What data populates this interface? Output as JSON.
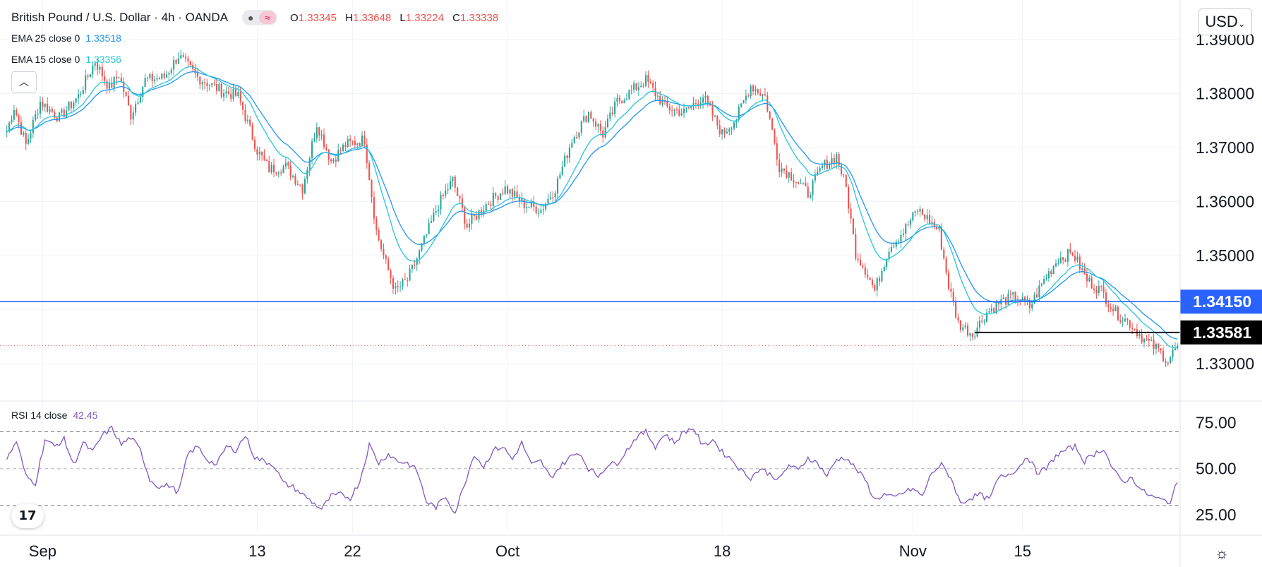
{
  "header": {
    "title": "British Pound / U.S. Dollar · 4h · OANDA",
    "ohlc": [
      {
        "key": "O",
        "value": "1.33345"
      },
      {
        "key": "H",
        "value": "1.33648"
      },
      {
        "key": "L",
        "value": "1.33224"
      },
      {
        "key": "C",
        "value": "1.33338"
      }
    ]
  },
  "indicators": {
    "ema25": {
      "label": "EMA 25 close 0",
      "value": "1.33518",
      "color": "#2196f3"
    },
    "ema15": {
      "label": "EMA 15 close 0",
      "value": "1.33356",
      "color": "#26c6da"
    },
    "rsi": {
      "label": "RSI 14 close",
      "value": "42.45",
      "color": "#7e57c2"
    }
  },
  "currency_button": "USD",
  "colors": {
    "up": "#26a69a",
    "down": "#ef5350",
    "support": "#2962ff",
    "resistance": "#000000"
  },
  "price_axis": {
    "ticks": [
      "1.39000",
      "1.38000",
      "1.37000",
      "1.36000",
      "1.35000",
      "1.33000"
    ]
  },
  "rsi_axis": {
    "ticks": [
      "75.00",
      "50.00",
      "25.00"
    ]
  },
  "time_axis": {
    "labels": [
      "Sep",
      "13",
      "22",
      "Oct",
      "18",
      "Nov",
      "15"
    ]
  },
  "chart_data": {
    "type": "candlestick",
    "title": "British Pound / U.S. Dollar",
    "interval": "4h",
    "ylim": [
      1.3235,
      1.396
    ],
    "rsi_ylim": [
      15,
      84
    ],
    "grid": true,
    "levels": [
      {
        "label": "1.34150",
        "value": 1.3415,
        "color": "#2962ff",
        "style": "solid",
        "from": "start"
      },
      {
        "label": "1.33581",
        "value": 1.33581,
        "color": "#000000",
        "style": "solid",
        "from": "Nov 11"
      }
    ],
    "current_close": 1.33338,
    "x_labels": [
      "Sep",
      "13",
      "22",
      "Oct",
      "18",
      "Nov",
      "15"
    ],
    "close_path": [
      [
        0,
        1.373
      ],
      [
        3,
        1.3775
      ],
      [
        8,
        1.3705
      ],
      [
        14,
        1.3785
      ],
      [
        22,
        1.3755
      ],
      [
        30,
        1.3795
      ],
      [
        37,
        1.386
      ],
      [
        43,
        1.381
      ],
      [
        47,
        1.3835
      ],
      [
        52,
        1.376
      ],
      [
        58,
        1.3825
      ],
      [
        66,
        1.383
      ],
      [
        72,
        1.387
      ],
      [
        80,
        1.383
      ],
      [
        90,
        1.3805
      ],
      [
        97,
        1.3795
      ],
      [
        105,
        1.3695
      ],
      [
        110,
        1.366
      ],
      [
        117,
        1.3665
      ],
      [
        124,
        1.3625
      ],
      [
        130,
        1.3745
      ],
      [
        136,
        1.3675
      ],
      [
        142,
        1.3705
      ],
      [
        150,
        1.3715
      ],
      [
        155,
        1.3545
      ],
      [
        159,
        1.3485
      ],
      [
        163,
        1.3435
      ],
      [
        168,
        1.3455
      ],
      [
        173,
        1.3505
      ],
      [
        181,
        1.3595
      ],
      [
        187,
        1.364
      ],
      [
        193,
        1.3555
      ],
      [
        201,
        1.3595
      ],
      [
        209,
        1.3625
      ],
      [
        217,
        1.3595
      ],
      [
        224,
        1.3585
      ],
      [
        230,
        1.3625
      ],
      [
        237,
        1.3715
      ],
      [
        244,
        1.3765
      ],
      [
        250,
        1.3725
      ],
      [
        256,
        1.3785
      ],
      [
        262,
        1.3805
      ],
      [
        268,
        1.3825
      ],
      [
        276,
        1.3775
      ],
      [
        284,
        1.3765
      ],
      [
        292,
        1.3795
      ],
      [
        300,
        1.3725
      ],
      [
        306,
        1.3755
      ],
      [
        312,
        1.3815
      ],
      [
        318,
        1.3795
      ],
      [
        324,
        1.3665
      ],
      [
        330,
        1.3645
      ],
      [
        336,
        1.3615
      ],
      [
        342,
        1.3665
      ],
      [
        348,
        1.3685
      ],
      [
        352,
        1.3625
      ],
      [
        356,
        1.3505
      ],
      [
        360,
        1.3475
      ],
      [
        364,
        1.3435
      ],
      [
        370,
        1.3515
      ],
      [
        376,
        1.3545
      ],
      [
        382,
        1.3585
      ],
      [
        387,
        1.3565
      ],
      [
        391,
        1.3545
      ],
      [
        395,
        1.3445
      ],
      [
        399,
        1.3375
      ],
      [
        405,
        1.3355
      ],
      [
        411,
        1.3395
      ],
      [
        417,
        1.3415
      ],
      [
        423,
        1.3425
      ],
      [
        429,
        1.3405
      ],
      [
        435,
        1.3455
      ],
      [
        441,
        1.3495
      ],
      [
        447,
        1.3505
      ],
      [
        453,
        1.3455
      ],
      [
        459,
        1.3435
      ],
      [
        465,
        1.3395
      ],
      [
        471,
        1.3375
      ],
      [
        477,
        1.3345
      ],
      [
        483,
        1.3325
      ],
      [
        487,
        1.3305
      ],
      [
        491,
        1.3334
      ]
    ],
    "rsi_path": [
      [
        0,
        55
      ],
      [
        4,
        65
      ],
      [
        8,
        46
      ],
      [
        12,
        42
      ],
      [
        16,
        66
      ],
      [
        20,
        62
      ],
      [
        24,
        66
      ],
      [
        28,
        52
      ],
      [
        32,
        64
      ],
      [
        36,
        59
      ],
      [
        40,
        68
      ],
      [
        44,
        72
      ],
      [
        48,
        63
      ],
      [
        52,
        67
      ],
      [
        56,
        60
      ],
      [
        60,
        44
      ],
      [
        64,
        40
      ],
      [
        68,
        41
      ],
      [
        72,
        37
      ],
      [
        76,
        58
      ],
      [
        80,
        62
      ],
      [
        84,
        55
      ],
      [
        88,
        52
      ],
      [
        92,
        62
      ],
      [
        96,
        60
      ],
      [
        100,
        68
      ],
      [
        104,
        56
      ],
      [
        108,
        54
      ],
      [
        112,
        52
      ],
      [
        116,
        42
      ],
      [
        120,
        40
      ],
      [
        124,
        36
      ],
      [
        128,
        32
      ],
      [
        132,
        28
      ],
      [
        136,
        35
      ],
      [
        140,
        36
      ],
      [
        144,
        34
      ],
      [
        148,
        43
      ],
      [
        152,
        63
      ],
      [
        156,
        53
      ],
      [
        160,
        58
      ],
      [
        164,
        54
      ],
      [
        168,
        53
      ],
      [
        172,
        49
      ],
      [
        176,
        32
      ],
      [
        180,
        29
      ],
      [
        184,
        35
      ],
      [
        188,
        26
      ],
      [
        192,
        42
      ],
      [
        196,
        58
      ],
      [
        200,
        51
      ],
      [
        204,
        60
      ],
      [
        208,
        62
      ],
      [
        212,
        55
      ],
      [
        216,
        64
      ],
      [
        220,
        52
      ],
      [
        224,
        54
      ],
      [
        228,
        45
      ],
      [
        232,
        51
      ],
      [
        236,
        56
      ],
      [
        240,
        59
      ],
      [
        244,
        50
      ],
      [
        248,
        46
      ],
      [
        252,
        52
      ],
      [
        256,
        53
      ],
      [
        260,
        60
      ],
      [
        264,
        67
      ],
      [
        268,
        70
      ],
      [
        272,
        62
      ],
      [
        276,
        69
      ],
      [
        280,
        64
      ],
      [
        284,
        70
      ],
      [
        288,
        72
      ],
      [
        292,
        62
      ],
      [
        296,
        66
      ],
      [
        300,
        59
      ],
      [
        304,
        55
      ],
      [
        308,
        49
      ],
      [
        312,
        45
      ],
      [
        316,
        50
      ],
      [
        320,
        47
      ],
      [
        324,
        44
      ],
      [
        328,
        52
      ],
      [
        332,
        49
      ],
      [
        336,
        56
      ],
      [
        340,
        53
      ],
      [
        344,
        46
      ],
      [
        348,
        55
      ],
      [
        352,
        56
      ],
      [
        356,
        50
      ],
      [
        360,
        44
      ],
      [
        364,
        33
      ],
      [
        368,
        36
      ],
      [
        372,
        34
      ],
      [
        376,
        37
      ],
      [
        380,
        39
      ],
      [
        384,
        35
      ],
      [
        388,
        48
      ],
      [
        392,
        52
      ],
      [
        396,
        45
      ],
      [
        400,
        31
      ],
      [
        404,
        34
      ],
      [
        408,
        36
      ],
      [
        412,
        33
      ],
      [
        416,
        45
      ],
      [
        420,
        47
      ],
      [
        424,
        50
      ],
      [
        428,
        57
      ],
      [
        432,
        48
      ],
      [
        436,
        50
      ],
      [
        440,
        57
      ],
      [
        444,
        60
      ],
      [
        448,
        62
      ],
      [
        452,
        54
      ],
      [
        456,
        58
      ],
      [
        460,
        61
      ],
      [
        464,
        49
      ],
      [
        468,
        43
      ],
      [
        472,
        45
      ],
      [
        476,
        38
      ],
      [
        480,
        35
      ],
      [
        484,
        33
      ],
      [
        488,
        32
      ],
      [
        491,
        43
      ]
    ]
  }
}
